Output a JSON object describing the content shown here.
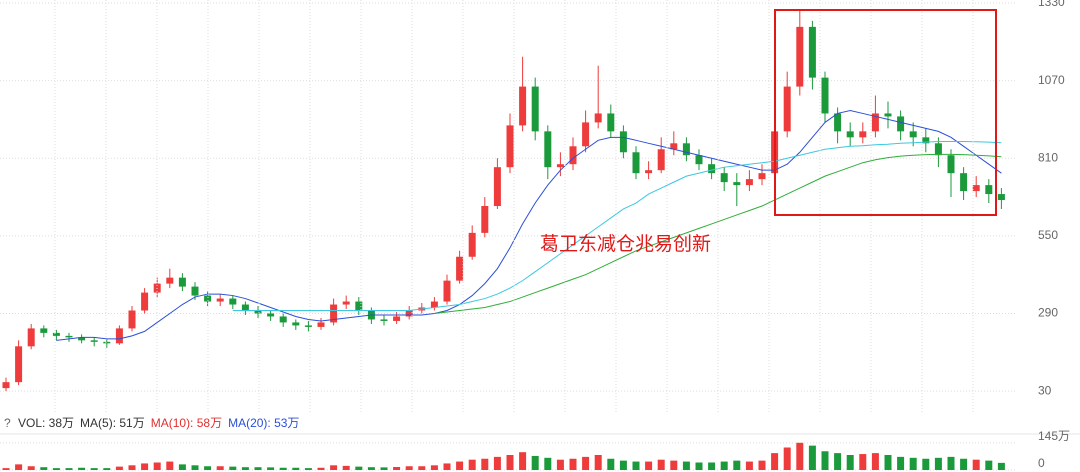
{
  "chart_data": [
    {
      "type": "candlestick",
      "annotation": "葛卫东减仓兆易创新",
      "up_color": "#ee3b3b",
      "down_color": "#1b9a3c",
      "ylim": [
        -40,
        1340
      ],
      "yticks": [
        30,
        290,
        550,
        810,
        1070,
        1330
      ],
      "grid": true,
      "open": [
        40,
        60,
        180,
        240,
        225,
        215,
        210,
        200,
        195,
        190,
        240,
        300,
        360,
        390,
        410,
        380,
        350,
        330,
        340,
        320,
        300,
        290,
        280,
        260,
        250,
        245,
        260,
        320,
        330,
        300,
        270,
        265,
        280,
        300,
        310,
        330,
        400,
        480,
        560,
        650,
        780,
        920,
        1050,
        900,
        780,
        790,
        850,
        930,
        960,
        900,
        830,
        760,
        770,
        840,
        860,
        820,
        790,
        760,
        730,
        720,
        740,
        760,
        900,
        1050,
        1250,
        1080,
        960,
        900,
        880,
        900,
        960,
        950,
        900,
        880,
        860,
        820,
        760,
        700,
        720,
        690
      ],
      "high": [
        75,
        200,
        255,
        250,
        235,
        225,
        220,
        210,
        205,
        250,
        315,
        375,
        410,
        440,
        425,
        395,
        365,
        355,
        350,
        330,
        315,
        300,
        290,
        270,
        265,
        275,
        340,
        350,
        345,
        310,
        285,
        295,
        315,
        325,
        345,
        420,
        500,
        585,
        680,
        810,
        960,
        1150,
        1080,
        920,
        830,
        880,
        970,
        1120,
        990,
        920,
        850,
        800,
        880,
        900,
        880,
        840,
        810,
        780,
        760,
        770,
        790,
        950,
        1100,
        1310,
        1270,
        1100,
        980,
        930,
        930,
        1020,
        1000,
        970,
        930,
        910,
        880,
        840,
        780,
        750,
        740,
        710
      ],
      "low": [
        30,
        50,
        170,
        210,
        200,
        195,
        190,
        180,
        175,
        185,
        230,
        290,
        345,
        375,
        365,
        335,
        315,
        315,
        305,
        285,
        275,
        265,
        245,
        235,
        230,
        235,
        250,
        305,
        285,
        255,
        250,
        255,
        270,
        290,
        300,
        320,
        390,
        470,
        545,
        640,
        760,
        900,
        870,
        740,
        750,
        770,
        830,
        910,
        880,
        810,
        740,
        740,
        760,
        820,
        800,
        770,
        740,
        700,
        650,
        700,
        720,
        750,
        880,
        1020,
        1040,
        930,
        860,
        850,
        860,
        880,
        910,
        870,
        850,
        830,
        780,
        680,
        670,
        680,
        660,
        640
      ],
      "close": [
        60,
        180,
        240,
        225,
        215,
        210,
        200,
        195,
        190,
        240,
        300,
        360,
        390,
        410,
        380,
        350,
        330,
        340,
        320,
        300,
        290,
        280,
        260,
        250,
        245,
        260,
        320,
        330,
        300,
        270,
        265,
        280,
        300,
        310,
        330,
        400,
        480,
        560,
        650,
        780,
        920,
        1050,
        900,
        780,
        790,
        850,
        930,
        960,
        900,
        830,
        760,
        770,
        840,
        860,
        820,
        790,
        760,
        730,
        720,
        740,
        760,
        900,
        1050,
        1250,
        1080,
        960,
        900,
        880,
        900,
        960,
        950,
        900,
        880,
        860,
        820,
        760,
        700,
        720,
        690,
        670
      ],
      "series": [
        {
          "color": "#2b4fd8",
          "values": [
            null,
            null,
            null,
            null,
            200,
            205,
            210,
            210,
            205,
            205,
            215,
            230,
            260,
            290,
            320,
            345,
            355,
            355,
            350,
            340,
            325,
            310,
            295,
            280,
            270,
            265,
            270,
            275,
            280,
            285,
            285,
            285,
            285,
            285,
            290,
            300,
            320,
            350,
            390,
            440,
            510,
            590,
            660,
            720,
            770,
            810,
            840,
            870,
            880,
            880,
            870,
            860,
            850,
            840,
            830,
            820,
            810,
            800,
            790,
            780,
            770,
            770,
            790,
            830,
            880,
            930,
            960,
            970,
            960,
            950,
            940,
            930,
            920,
            910,
            900,
            880,
            850,
            820,
            790,
            760
          ]
        },
        {
          "color": "#3cc8e0",
          "values": [
            null,
            null,
            null,
            null,
            null,
            null,
            null,
            null,
            null,
            null,
            null,
            null,
            null,
            null,
            null,
            null,
            null,
            null,
            300,
            300,
            300,
            300,
            300,
            300,
            300,
            300,
            300,
            300,
            300,
            300,
            300,
            300,
            300,
            305,
            310,
            315,
            320,
            330,
            340,
            355,
            375,
            400,
            430,
            460,
            490,
            520,
            550,
            580,
            610,
            640,
            660,
            690,
            710,
            730,
            750,
            760,
            770,
            780,
            785,
            790,
            795,
            800,
            810,
            820,
            830,
            840,
            845,
            850,
            852,
            855,
            857,
            860,
            862,
            864,
            866,
            866,
            866,
            865,
            864,
            862
          ]
        },
        {
          "color": "#2fae3a",
          "values": [
            null,
            null,
            null,
            null,
            null,
            null,
            null,
            null,
            null,
            null,
            null,
            null,
            null,
            null,
            null,
            null,
            null,
            null,
            null,
            null,
            null,
            null,
            null,
            null,
            null,
            null,
            null,
            null,
            null,
            null,
            null,
            null,
            null,
            null,
            290,
            295,
            300,
            305,
            310,
            320,
            330,
            345,
            360,
            375,
            390,
            405,
            420,
            440,
            460,
            480,
            500,
            515,
            530,
            545,
            560,
            575,
            590,
            605,
            620,
            635,
            650,
            670,
            690,
            710,
            730,
            750,
            765,
            780,
            795,
            805,
            812,
            817,
            820,
            822,
            823,
            823,
            822,
            820,
            818,
            815
          ]
        }
      ]
    },
    {
      "type": "bar",
      "help": "?",
      "legend": [
        {
          "label": "VOL: 38万",
          "color": "#333333"
        },
        {
          "label": "MA(5): 51万",
          "color": "#333333"
        },
        {
          "label": "MA(10): 58万",
          "color": "#e03030"
        },
        {
          "label": "MA(20): 53万",
          "color": "#2b4fd8"
        }
      ],
      "ylim": [
        0,
        160
      ],
      "yticks": [
        0,
        {
          "value": 145,
          "label": "145万"
        }
      ],
      "values": [
        10,
        30,
        20,
        15,
        10,
        10,
        12,
        10,
        10,
        18,
        25,
        35,
        40,
        45,
        30,
        25,
        20,
        20,
        18,
        15,
        15,
        14,
        12,
        12,
        10,
        12,
        25,
        22,
        18,
        15,
        14,
        16,
        20,
        20,
        25,
        35,
        45,
        55,
        60,
        70,
        80,
        95,
        75,
        65,
        55,
        60,
        70,
        80,
        60,
        50,
        45,
        45,
        55,
        50,
        45,
        40,
        40,
        45,
        50,
        45,
        50,
        90,
        120,
        145,
        130,
        100,
        90,
        80,
        85,
        90,
        80,
        70,
        65,
        60,
        65,
        70,
        60,
        55,
        50,
        38
      ]
    }
  ]
}
